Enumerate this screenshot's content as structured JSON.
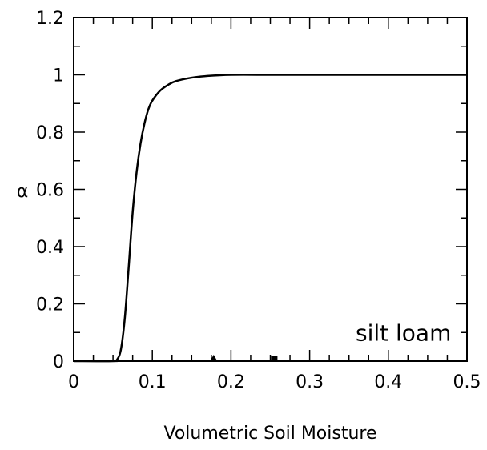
{
  "chart_data": {
    "type": "line",
    "title": "",
    "xlabel": "Volumetric Soil Moisture",
    "ylabel": "α",
    "xlim": [
      0,
      0.5
    ],
    "ylim": [
      0,
      1.2
    ],
    "x_ticks": [
      "0",
      "0.1",
      "0.2",
      "0.3",
      "0.4",
      "0.5"
    ],
    "y_ticks": [
      "0",
      "0.2",
      "0.4",
      "0.6",
      "0.8",
      "1",
      "1.2"
    ],
    "grid": false,
    "annotation": "silt loam",
    "series": [
      {
        "x": [
          0,
          0.05,
          0.055,
          0.06,
          0.065,
          0.07,
          0.075,
          0.08,
          0.085,
          0.09,
          0.095,
          0.1,
          0.11,
          0.12,
          0.13,
          0.15,
          0.17,
          0.2,
          0.25,
          0.3,
          0.4,
          0.5
        ],
        "y": [
          0,
          0,
          0.005,
          0.04,
          0.15,
          0.33,
          0.52,
          0.66,
          0.76,
          0.83,
          0.88,
          0.91,
          0.945,
          0.965,
          0.978,
          0.99,
          0.996,
          1.0,
          1.0,
          1.0,
          1.0,
          1.0
        ]
      }
    ],
    "markers": [
      {
        "shape": "triangle",
        "x": 0.178,
        "y": 0
      },
      {
        "shape": "square",
        "x": 0.255,
        "y": 0
      }
    ]
  }
}
